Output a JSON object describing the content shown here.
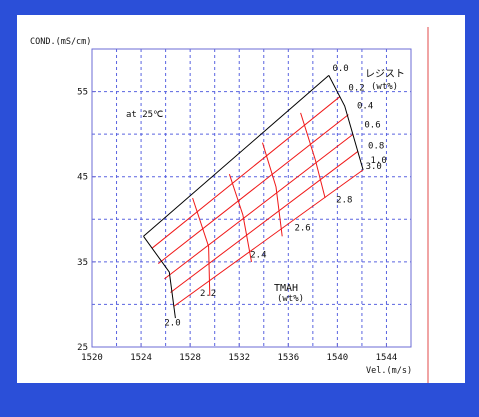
{
  "colors": {
    "border": "#2b4fd8",
    "panel": "#ffffff",
    "axis": "#6b6bd6",
    "grid": "#5a64e0",
    "red_line": "#f01818",
    "black_line": "#000000",
    "right_rule": "#e24a4a",
    "text": "#111111"
  },
  "chart_data": {
    "type": "line",
    "ylabel": "COND.(mS/cm)",
    "xlabel": "Vel.(m/s)",
    "xlim": [
      1520,
      1546
    ],
    "ylim": [
      25,
      60
    ],
    "xticks": [
      1520,
      1524,
      1528,
      1532,
      1536,
      1540,
      1544
    ],
    "yticks": [
      25,
      35,
      45,
      55
    ],
    "grid_x": [
      1522,
      1524,
      1526,
      1528,
      1530,
      1532,
      1534,
      1536,
      1538,
      1540,
      1542,
      1544
    ],
    "grid_y": [
      30,
      35,
      40,
      45,
      50,
      55
    ],
    "annotation": "at 25℃",
    "resist_label": "レジスト",
    "resist_unit": "(wt%)",
    "tmah_label": "TMAH",
    "tmah_unit": "(wt%)",
    "resist_wt": [
      "0.0",
      "0.2",
      "0.4",
      "0.6",
      "0.8",
      "1.0"
    ],
    "tmah_wt": [
      "2.0",
      "2.2",
      "2.4",
      "2.6",
      "2.8",
      "3.0"
    ],
    "tmah_label_points": [
      {
        "label": "2.0",
        "x": 1525.9,
        "y": 27.5
      },
      {
        "label": "2.2",
        "x": 1528.8,
        "y": 31.0
      },
      {
        "label": "2.4",
        "x": 1532.9,
        "y": 35.5
      },
      {
        "label": "2.6",
        "x": 1536.5,
        "y": 38.7
      },
      {
        "label": "2.8",
        "x": 1539.9,
        "y": 42.0
      },
      {
        "label": "3.0",
        "x": 1542.3,
        "y": 45.9
      }
    ],
    "resist_label_points": [
      {
        "label": "0.0",
        "x": 1539.6,
        "y": 57.4
      },
      {
        "label": "0.2",
        "x": 1540.9,
        "y": 55.1
      },
      {
        "label": "0.4",
        "x": 1541.6,
        "y": 53.0
      },
      {
        "label": "0.6",
        "x": 1542.2,
        "y": 50.8
      },
      {
        "label": "0.8",
        "x": 1542.5,
        "y": 48.3
      },
      {
        "label": "1.0",
        "x": 1542.7,
        "y": 46.6
      }
    ],
    "series": [
      {
        "color": "black",
        "points": [
          [
            1524.2,
            38.0
          ],
          [
            1539.3,
            56.9
          ]
        ]
      },
      {
        "color": "red",
        "points": [
          [
            1524.9,
            36.6
          ],
          [
            1540.2,
            54.4
          ]
        ]
      },
      {
        "color": "red",
        "points": [
          [
            1525.4,
            34.8
          ],
          [
            1540.9,
            52.3
          ]
        ]
      },
      {
        "color": "red",
        "points": [
          [
            1525.9,
            33.0
          ],
          [
            1541.3,
            50.0
          ]
        ]
      },
      {
        "color": "red",
        "points": [
          [
            1526.4,
            31.4
          ],
          [
            1541.7,
            48.0
          ]
        ]
      },
      {
        "color": "red",
        "points": [
          [
            1526.7,
            29.8
          ],
          [
            1542.1,
            45.8
          ]
        ]
      },
      {
        "color": "black",
        "points": [
          [
            1524.2,
            38.0
          ],
          [
            1526.3,
            33.8
          ],
          [
            1526.8,
            28.4
          ]
        ]
      },
      {
        "color": "red",
        "points": [
          [
            1528.2,
            42.5
          ],
          [
            1529.5,
            36.8
          ],
          [
            1529.6,
            31.0
          ]
        ]
      },
      {
        "color": "red",
        "points": [
          [
            1531.2,
            45.3
          ],
          [
            1532.3,
            40.5
          ],
          [
            1533.0,
            35.0
          ]
        ]
      },
      {
        "color": "red",
        "points": [
          [
            1533.9,
            49.0
          ],
          [
            1535.0,
            43.8
          ],
          [
            1535.5,
            38.0
          ]
        ]
      },
      {
        "color": "red",
        "points": [
          [
            1537.0,
            52.5
          ],
          [
            1538.2,
            47.0
          ],
          [
            1539.0,
            42.5
          ]
        ]
      },
      {
        "color": "black",
        "points": [
          [
            1539.3,
            56.9
          ],
          [
            1540.6,
            53.3
          ],
          [
            1542.1,
            45.8
          ]
        ]
      }
    ]
  }
}
